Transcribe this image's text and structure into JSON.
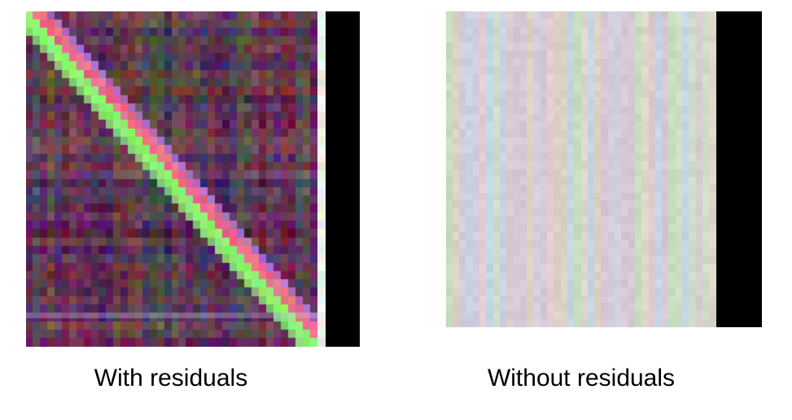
{
  "panels": [
    {
      "caption": "With residuals",
      "pattern": "diagonal",
      "grid_size": 40,
      "colors": {
        "background_dark": "#4a2a3a",
        "diagonal_pink": "#e05a7a",
        "diagonal_green": "#7cf05a",
        "sidebar": "#000000"
      }
    },
    {
      "caption": "Without residuals",
      "pattern": "vertical-stripes",
      "grid_size": 40,
      "colors": {
        "background_light": "#d8d2d4",
        "sidebar": "#000000"
      }
    }
  ]
}
